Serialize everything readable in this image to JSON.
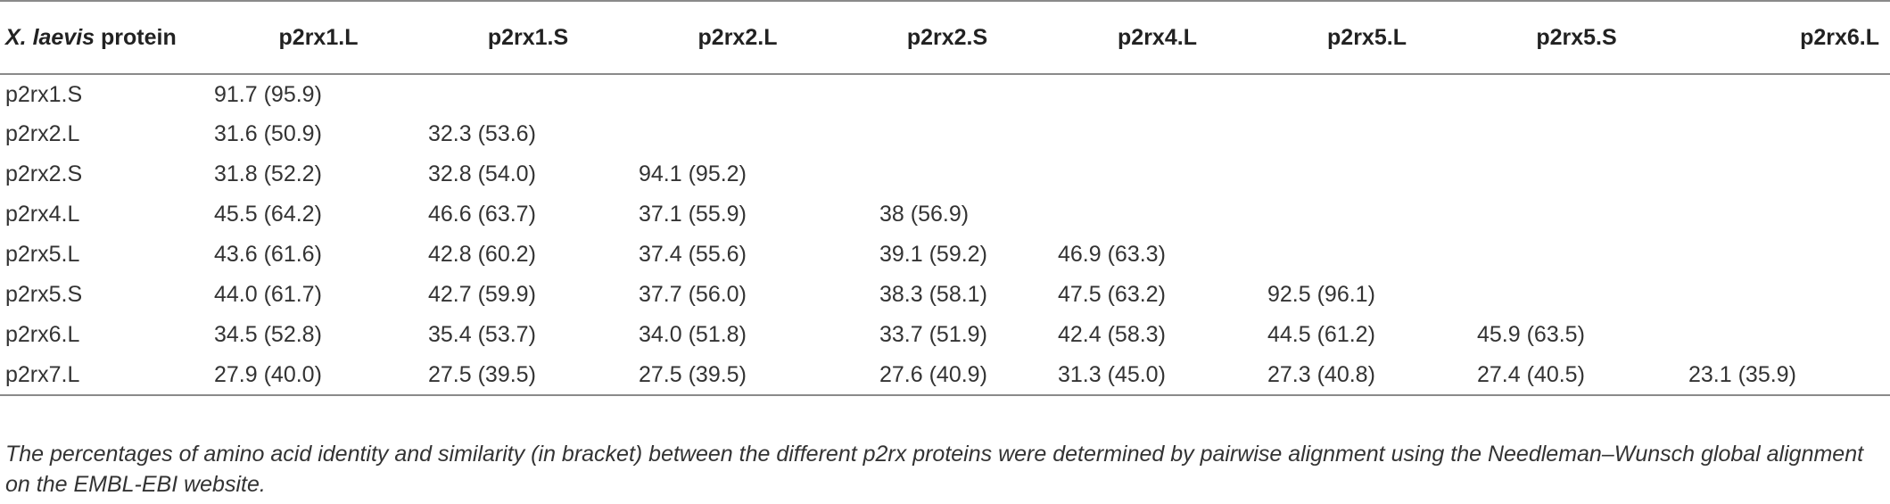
{
  "table": {
    "header": {
      "first_label_italic": "X. laevis",
      "first_label_rest": " protein",
      "columns": [
        "p2rx1.L",
        "p2rx1.S",
        "p2rx2.L",
        "p2rx2.S",
        "p2rx4.L",
        "p2rx5.L",
        "p2rx5.S",
        "p2rx6.L"
      ]
    },
    "rows": [
      {
        "label": "p2rx1.S",
        "cells": [
          "91.7 (95.9)",
          "",
          "",
          "",
          "",
          "",
          "",
          ""
        ]
      },
      {
        "label": "p2rx2.L",
        "cells": [
          "31.6 (50.9)",
          "32.3 (53.6)",
          "",
          "",
          "",
          "",
          "",
          ""
        ]
      },
      {
        "label": "p2rx2.S",
        "cells": [
          "31.8 (52.2)",
          "32.8 (54.0)",
          "94.1 (95.2)",
          "",
          "",
          "",
          "",
          ""
        ]
      },
      {
        "label": "p2rx4.L",
        "cells": [
          "45.5 (64.2)",
          "46.6 (63.7)",
          "37.1 (55.9)",
          "38 (56.9)",
          "",
          "",
          "",
          ""
        ]
      },
      {
        "label": "p2rx5.L",
        "cells": [
          "43.6 (61.6)",
          "42.8 (60.2)",
          "37.4 (55.6)",
          "39.1 (59.2)",
          "46.9 (63.3)",
          "",
          "",
          ""
        ]
      },
      {
        "label": "p2rx5.S",
        "cells": [
          "44.0 (61.7)",
          "42.7 (59.9)",
          "37.7 (56.0)",
          "38.3 (58.1)",
          "47.5 (63.2)",
          "92.5 (96.1)",
          "",
          ""
        ]
      },
      {
        "label": "p2rx6.L",
        "cells": [
          "34.5 (52.8)",
          "35.4 (53.7)",
          "34.0 (51.8)",
          "33.7 (51.9)",
          "42.4 (58.3)",
          "44.5 (61.2)",
          "45.9 (63.5)",
          ""
        ]
      },
      {
        "label": "p2rx7.L",
        "cells": [
          "27.9 (40.0)",
          "27.5 (39.5)",
          "27.5 (39.5)",
          "27.6 (40.9)",
          "31.3 (45.0)",
          "27.3 (40.8)",
          "27.4 (40.5)",
          "23.1 (35.9)"
        ]
      }
    ]
  },
  "footnote": "The percentages of amino acid identity and similarity (in bracket) between the different p2rx proteins were determined by pairwise alignment using the Needleman–Wunsch global alignment on the EMBL-EBI website."
}
